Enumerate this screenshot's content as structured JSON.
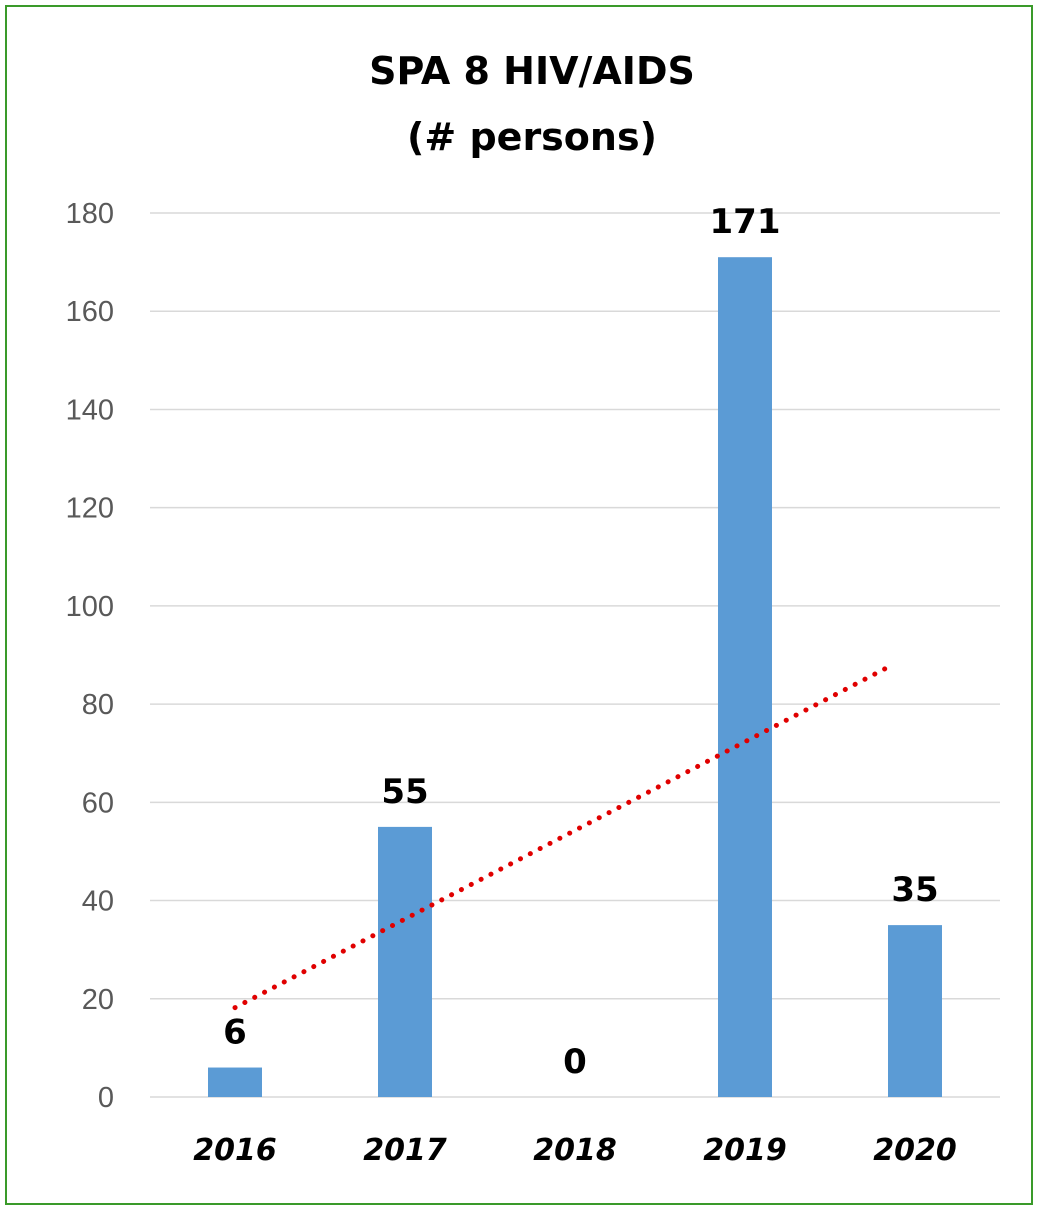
{
  "chart_data": {
    "type": "bar",
    "title_lines": [
      "SPA 8 HIV/AIDS",
      "(# persons)"
    ],
    "categories": [
      "2016",
      "2017",
      "2018",
      "2019",
      "2020"
    ],
    "values": [
      6,
      55,
      0,
      171,
      35
    ],
    "data_labels": [
      "6",
      "55",
      "0",
      "171",
      "35"
    ],
    "y_ticks": [
      "0",
      "20",
      "40",
      "60",
      "80",
      "100",
      "120",
      "140",
      "160",
      "180"
    ],
    "ylim": [
      0,
      180
    ],
    "grid": true,
    "legend": "none",
    "trendline": {
      "type": "linear",
      "style": "dotted",
      "start": 18.2,
      "end": 87.2
    },
    "colors": {
      "bar": "#5b9bd5",
      "trendline": "#e00000",
      "grid": "#d9d9d9",
      "frame": "#3a9a2a"
    }
  }
}
